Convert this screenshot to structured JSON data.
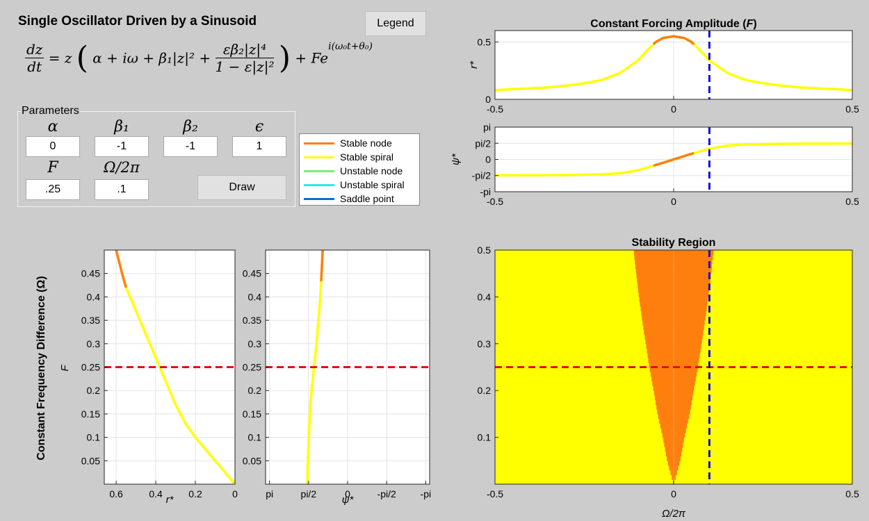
{
  "app": {
    "title": "Single Oscillator Driven by a Sinusoid"
  },
  "equation": {
    "lhs_num": "dz",
    "lhs_den": "dt",
    "rhs_a": "= z",
    "terms": "α + iω + β₁|z|² +",
    "frac_num": "εβ₂|z|⁴",
    "frac_den": "1 − ε|z|²",
    "forcing": "+ Fe",
    "exponent": "i(ω₀t+θ₀)"
  },
  "buttons": {
    "legend": "Legend",
    "draw": "Draw"
  },
  "parameters": {
    "title": "Parameters",
    "alpha": {
      "label": "α",
      "value": "0"
    },
    "beta1": {
      "label": "β₁",
      "value": "-1"
    },
    "beta2": {
      "label": "β₂",
      "value": "-1"
    },
    "epsilon": {
      "label": "ϵ",
      "value": "1"
    },
    "F": {
      "label": "F",
      "value": ".25"
    },
    "omega": {
      "label": "Ω/2π",
      "value": ".1"
    }
  },
  "legend": {
    "items": [
      {
        "label": "Stable node",
        "color": "#ff7f0e"
      },
      {
        "label": "Stable spiral",
        "color": "#ffff00"
      },
      {
        "label": "Unstable node",
        "color": "#77ee77"
      },
      {
        "label": "Unstable spiral",
        "color": "#22eeee"
      },
      {
        "label": "Saddle point",
        "color": "#0a6ed1"
      }
    ]
  },
  "chart_data": [
    {
      "type": "line",
      "title": "Constant Forcing Amplitude (F)",
      "ylabel": "r*",
      "xlim": [
        -0.5,
        0.5
      ],
      "ylim": [
        0,
        0.6
      ],
      "xticks": [
        "-0.5",
        "0",
        "0.5"
      ],
      "yticks": [
        "0",
        "0.5"
      ],
      "grid": true,
      "marker_x": 0.1,
      "stable_node_range": [
        -0.06,
        0.06
      ],
      "series": [
        {
          "x": [
            -0.5,
            -0.45,
            -0.4,
            -0.35,
            -0.3,
            -0.25,
            -0.2,
            -0.15,
            -0.1,
            -0.07,
            -0.05,
            -0.03,
            0,
            0.03,
            0.05,
            0.07,
            0.1,
            0.15,
            0.2,
            0.25,
            0.3,
            0.35,
            0.4,
            0.45,
            0.5
          ],
          "values": [
            0.08,
            0.09,
            0.095,
            0.105,
            0.12,
            0.14,
            0.17,
            0.23,
            0.34,
            0.44,
            0.5,
            0.535,
            0.55,
            0.535,
            0.5,
            0.44,
            0.34,
            0.23,
            0.17,
            0.14,
            0.12,
            0.105,
            0.095,
            0.09,
            0.08
          ]
        }
      ]
    },
    {
      "type": "line",
      "ylabel": "ψ*",
      "xlim": [
        -0.5,
        0.5
      ],
      "ylim": [
        -3.1416,
        3.1416
      ],
      "xticks": [
        "-0.5",
        "0",
        "0.5"
      ],
      "yticks": [
        "pi",
        "pi/2",
        "0",
        "-pi/2",
        "-pi"
      ],
      "grid": true,
      "marker_x": 0.1,
      "stable_node_range": [
        -0.06,
        0.06
      ],
      "series": [
        {
          "x": [
            -0.5,
            -0.4,
            -0.3,
            -0.2,
            -0.15,
            -0.1,
            -0.07,
            -0.05,
            0,
            0.05,
            0.07,
            0.1,
            0.15,
            0.2,
            0.3,
            0.4,
            0.5
          ],
          "values": [
            -1.55,
            -1.54,
            -1.52,
            -1.45,
            -1.35,
            -1.05,
            -0.75,
            -0.55,
            0,
            0.55,
            0.75,
            1.05,
            1.35,
            1.45,
            1.52,
            1.54,
            1.55
          ]
        }
      ]
    },
    {
      "type": "line",
      "ylabel": "F",
      "xlabel": "r*",
      "side_label": "Constant Frequency Difference (Ω)",
      "xlim": [
        0.66,
        0
      ],
      "ylim": [
        0,
        0.5
      ],
      "xticks": [
        "0.6",
        "0.4",
        "0.2",
        "0"
      ],
      "yticks": [
        "0.05",
        "0.1",
        "0.15",
        "0.2",
        "0.25",
        "0.3",
        "0.35",
        "0.4",
        "0.45"
      ],
      "grid": true,
      "marker_y": 0.25,
      "stable_node_above": 0.42,
      "series": [
        {
          "x": [
            0,
            0.05,
            0.1,
            0.15,
            0.2,
            0.25,
            0.3,
            0.35,
            0.38,
            0.42,
            0.47,
            0.52,
            0.55,
            0.57,
            0.6
          ],
          "values": [
            0,
            0.025,
            0.05,
            0.075,
            0.1,
            0.13,
            0.17,
            0.22,
            0.25,
            0.29,
            0.34,
            0.39,
            0.42,
            0.45,
            0.5
          ]
        }
      ]
    },
    {
      "type": "line",
      "xlabel": "ψ*",
      "xlim": [
        3.3,
        -3.3
      ],
      "ylim": [
        0,
        0.5
      ],
      "xticks": [
        "pi",
        "pi/2",
        "0",
        "-pi/2",
        "-pi"
      ],
      "yticks": [
        "0.05",
        "0.1",
        "0.15",
        "0.2",
        "0.25",
        "0.3",
        "0.35",
        "0.4",
        "0.45"
      ],
      "grid": true,
      "marker_y": 0.25,
      "stable_node_above": 0.42,
      "series": [
        {
          "x": [
            1.62,
            1.6,
            1.56,
            1.52,
            1.45,
            1.35,
            1.25,
            1.1,
            1.0
          ],
          "values": [
            0,
            0.05,
            0.1,
            0.15,
            0.2,
            0.25,
            0.3,
            0.4,
            0.5
          ]
        }
      ]
    },
    {
      "type": "heatmap",
      "title": "Stability Region",
      "xlabel": "Ω/2π",
      "xlim": [
        -0.5,
        0.5
      ],
      "ylim": [
        0,
        0.5
      ],
      "xticks": [
        "-0.5",
        "0",
        "0.5"
      ],
      "yticks": [
        "0.1",
        "0.2",
        "0.3",
        "0.4",
        "0.5"
      ],
      "grid": true,
      "marker_x": 0.1,
      "marker_y": 0.25,
      "categories": [
        "Stable spiral",
        "Stable node"
      ],
      "stable_node_boundary": {
        "y": [
          0,
          0.05,
          0.1,
          0.15,
          0.2,
          0.25,
          0.3,
          0.35,
          0.4,
          0.45,
          0.5
        ],
        "omega_max": [
          0,
          0.018,
          0.03,
          0.045,
          0.056,
          0.068,
          0.078,
          0.088,
          0.097,
          0.105,
          0.112
        ]
      }
    }
  ]
}
